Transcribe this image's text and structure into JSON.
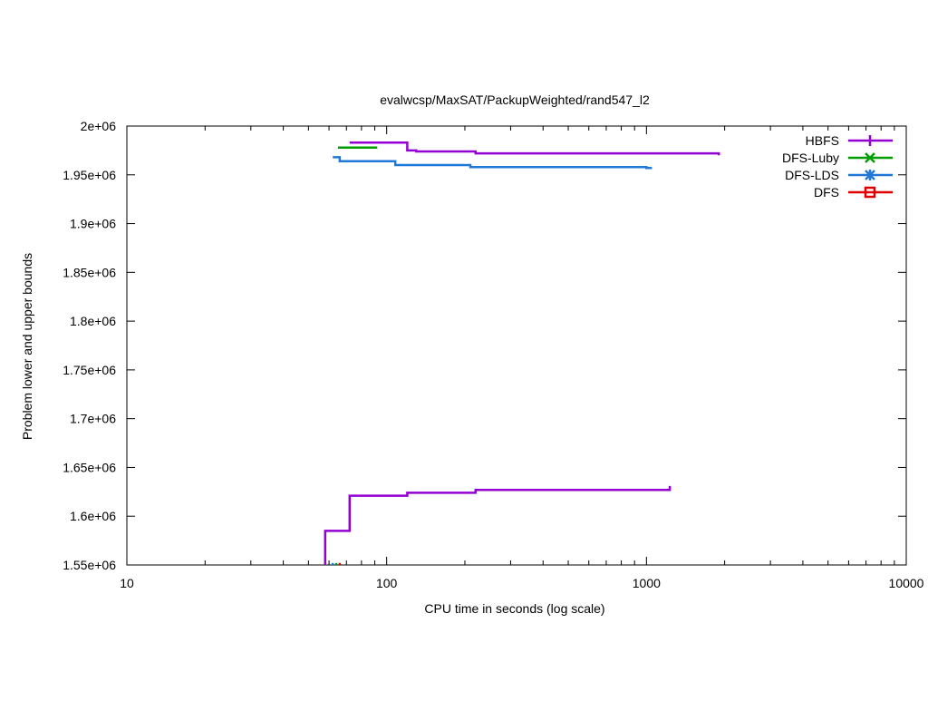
{
  "chart_data": {
    "type": "line",
    "title": "evalwcsp/MaxSAT/PackupWeighted/rand547_l2",
    "xlabel": "CPU time in seconds (log scale)",
    "ylabel": "Problem lower and upper bounds",
    "xscale": "log",
    "xlim": [
      10,
      10000
    ],
    "ylim": [
      1550000,
      2000000
    ],
    "x_ticks": [
      {
        "value": 10,
        "label": "10"
      },
      {
        "value": 100,
        "label": "100"
      },
      {
        "value": 1000,
        "label": "1000"
      },
      {
        "value": 10000,
        "label": "10000"
      }
    ],
    "y_ticks": [
      {
        "value": 1550000,
        "label": "1.55e+06"
      },
      {
        "value": 1600000,
        "label": "1.6e+06"
      },
      {
        "value": 1650000,
        "label": "1.65e+06"
      },
      {
        "value": 1700000,
        "label": "1.7e+06"
      },
      {
        "value": 1750000,
        "label": "1.75e+06"
      },
      {
        "value": 1800000,
        "label": "1.8e+06"
      },
      {
        "value": 1850000,
        "label": "1.85e+06"
      },
      {
        "value": 1900000,
        "label": "1.9e+06"
      },
      {
        "value": 1950000,
        "label": "1.95e+06"
      },
      {
        "value": 2000000,
        "label": "2e+06"
      }
    ],
    "legend_position": "top-right",
    "series": [
      {
        "name": "HBFS",
        "color": "#9400d3",
        "marker": "plus",
        "paths": [
          {
            "role": "upper",
            "x": [
              72,
              120,
              120,
              130,
              130,
              220,
              220,
              1900,
              1900
            ],
            "y": [
              1983000,
              1983000,
              1975000,
              1975000,
              1974000,
              1974000,
              1972000,
              1972000,
              1970000
            ]
          },
          {
            "role": "lower",
            "x": [
              58,
              58,
              72,
              72,
              120,
              120,
              220,
              220,
              1230,
              1230
            ],
            "y": [
              1550000,
              1585000,
              1585000,
              1621000,
              1621000,
              1624000,
              1624000,
              1627000,
              1627000,
              1631000
            ]
          }
        ]
      },
      {
        "name": "DFS-Luby",
        "color": "#009e00",
        "marker": "x",
        "paths": [
          {
            "role": "upper",
            "x": [
              65,
              92
            ],
            "y": [
              1978000,
              1978000
            ]
          },
          {
            "role": "lower",
            "x": [
              64,
              64
            ],
            "y": [
              1550000,
              1552000
            ]
          }
        ]
      },
      {
        "name": "DFS-LDS",
        "color": "#1f78d7",
        "marker": "star",
        "paths": [
          {
            "role": "upper",
            "x": [
              62,
              66,
              66,
              108,
              108,
              210,
              210,
              1000,
              1000,
              1050
            ],
            "y": [
              1968000,
              1968000,
              1964000,
              1964000,
              1960000,
              1960000,
              1958000,
              1958000,
              1957000,
              1957000
            ]
          },
          {
            "role": "lower",
            "x": [
              62,
              62
            ],
            "y": [
              1550000,
              1552000
            ]
          }
        ]
      },
      {
        "name": "DFS",
        "color": "#e00000",
        "marker": "square",
        "paths": [
          {
            "role": "lower",
            "x": [
              66,
              66
            ],
            "y": [
              1550000,
              1552000
            ]
          }
        ]
      }
    ]
  }
}
